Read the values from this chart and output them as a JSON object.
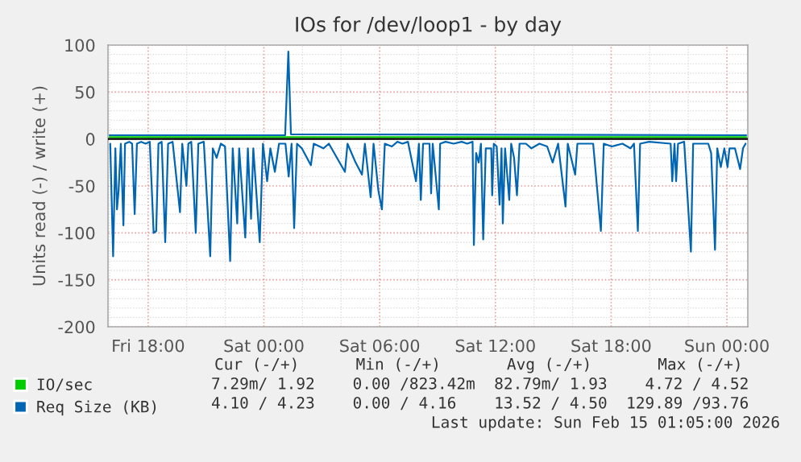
{
  "chart_data": {
    "type": "line",
    "title": "IOs for /dev/loop1 - by day",
    "ylabel": "Units read (-) / write (+)",
    "xlim": [
      "2026-02-13T15:55",
      "2026-02-15T01:05"
    ],
    "ylim": [
      -200,
      100
    ],
    "xticks": [
      {
        "value": "2026-02-13T18:00",
        "label": "Fri 18:00"
      },
      {
        "value": "2026-02-14T00:00",
        "label": "Sat 00:00"
      },
      {
        "value": "2026-02-14T06:00",
        "label": "Sat 06:00"
      },
      {
        "value": "2026-02-14T12:00",
        "label": "Sat 12:00"
      },
      {
        "value": "2026-02-14T18:00",
        "label": "Sat 18:00"
      },
      {
        "value": "2026-02-15T00:00",
        "label": "Sun 00:00"
      }
    ],
    "yticks": [
      -200,
      -150,
      -100,
      -50,
      0,
      50,
      100
    ],
    "grid": true,
    "legend": "bottom left",
    "ref_lines": [
      {
        "axis": "y",
        "value": 0,
        "color": "#000000"
      }
    ],
    "series": [
      {
        "name": "IO/sec",
        "color": "#00cc00",
        "x": [
          "2026-02-13T16:00",
          "2026-02-14T01:06",
          "2026-02-14T01:16",
          "2026-02-14T01:24",
          "2026-02-15T01:00"
        ],
        "values": [
          2,
          2,
          2,
          2,
          2
        ]
      },
      {
        "name": "Req Size (KB)",
        "color": "#0066b3",
        "x": [
          "2026-02-13T16:02",
          "2026-02-13T16:11",
          "2026-02-13T16:18",
          "2026-02-13T16:23",
          "2026-02-13T16:28",
          "2026-02-13T16:35",
          "2026-02-13T16:43",
          "2026-02-13T16:48",
          "2026-02-13T17:01",
          "2026-02-13T17:10",
          "2026-02-13T17:18",
          "2026-02-13T17:25",
          "2026-02-13T17:38",
          "2026-02-13T17:52",
          "2026-02-13T18:05",
          "2026-02-13T18:17",
          "2026-02-13T18:25",
          "2026-02-13T18:32",
          "2026-02-13T18:42",
          "2026-02-13T18:53",
          "2026-02-13T19:02",
          "2026-02-13T19:16",
          "2026-02-13T19:39",
          "2026-02-13T19:46",
          "2026-02-13T19:59",
          "2026-02-13T20:05",
          "2026-02-13T20:14",
          "2026-02-13T20:28",
          "2026-02-13T20:36",
          "2026-02-13T20:53",
          "2026-02-13T21:13",
          "2026-02-13T21:21",
          "2026-02-13T21:33",
          "2026-02-13T21:46",
          "2026-02-13T21:59",
          "2026-02-13T22:15",
          "2026-02-13T22:23",
          "2026-02-13T22:37",
          "2026-02-13T22:43",
          "2026-02-13T23:02",
          "2026-02-13T23:10",
          "2026-02-13T23:20",
          "2026-02-13T23:27",
          "2026-02-13T23:47",
          "2026-02-13T23:57",
          "2026-02-14T00:10",
          "2026-02-14T00:20",
          "2026-02-14T00:34",
          "2026-02-14T00:47",
          "2026-02-14T01:07",
          "2026-02-14T01:17",
          "2026-02-14T01:26",
          "2026-02-14T01:34",
          "2026-02-14T01:43",
          "2026-02-14T01:58",
          "2026-02-14T02:26",
          "2026-02-14T02:35",
          "2026-02-14T03:05",
          "2026-02-14T03:22",
          "2026-02-14T04:12",
          "2026-02-14T04:20",
          "2026-02-14T04:45",
          "2026-02-14T05:05",
          "2026-02-14T05:14",
          "2026-02-14T05:32",
          "2026-02-14T05:41",
          "2026-02-14T05:56",
          "2026-02-14T06:07",
          "2026-02-14T06:16",
          "2026-02-14T06:38",
          "2026-02-14T06:55",
          "2026-02-14T07:11",
          "2026-02-14T07:28",
          "2026-02-14T07:53",
          "2026-02-14T08:02",
          "2026-02-14T08:08",
          "2026-02-14T08:15",
          "2026-02-14T08:35",
          "2026-02-14T08:40",
          "2026-02-14T08:45",
          "2026-02-14T09:04",
          "2026-02-14T09:08",
          "2026-02-14T09:25",
          "2026-02-14T09:50",
          "2026-02-14T10:15",
          "2026-02-14T10:32",
          "2026-02-14T10:49",
          "2026-02-14T10:53",
          "2026-02-14T11:00",
          "2026-02-14T11:08",
          "2026-02-14T11:15",
          "2026-02-14T11:22",
          "2026-02-14T11:30",
          "2026-02-14T11:47",
          "2026-02-14T11:50",
          "2026-02-14T11:55",
          "2026-02-14T12:04",
          "2026-02-14T12:13",
          "2026-02-14T12:19",
          "2026-02-14T12:23",
          "2026-02-14T12:30",
          "2026-02-14T12:43",
          "2026-02-14T12:49",
          "2026-02-14T12:58",
          "2026-02-14T13:07",
          "2026-02-14T13:15",
          "2026-02-14T13:35",
          "2026-02-14T13:52",
          "2026-02-14T14:17",
          "2026-02-14T14:41",
          "2026-02-14T14:58",
          "2026-02-14T15:15",
          "2026-02-14T15:38",
          "2026-02-14T15:45",
          "2026-02-14T16:08",
          "2026-02-14T16:15",
          "2026-02-14T16:38",
          "2026-02-14T17:04",
          "2026-02-14T17:28",
          "2026-02-14T17:37",
          "2026-02-14T18:02",
          "2026-02-14T18:35",
          "2026-02-14T19:00",
          "2026-02-14T19:11",
          "2026-02-14T19:23",
          "2026-02-14T19:30",
          "2026-02-14T19:58",
          "2026-02-14T21:05",
          "2026-02-14T21:10",
          "2026-02-14T21:17",
          "2026-02-14T21:22",
          "2026-02-14T21:28",
          "2026-02-14T21:47",
          "2026-02-14T22:08",
          "2026-02-14T22:15",
          "2026-02-14T22:45",
          "2026-02-14T23:02",
          "2026-02-14T23:11",
          "2026-02-14T23:23",
          "2026-02-14T23:30",
          "2026-02-14T23:41",
          "2026-02-14T23:52",
          "2026-02-15T00:02",
          "2026-02-15T00:08",
          "2026-02-15T00:25",
          "2026-02-15T00:41",
          "2026-02-15T00:50",
          "2026-02-15T00:58"
        ],
        "values": [
          -5,
          -125,
          -10,
          -75,
          -55,
          -5,
          -92,
          -5,
          -3,
          -5,
          -80,
          -5,
          -3,
          -5,
          -3,
          -100,
          -98,
          -5,
          -3,
          -110,
          -5,
          -3,
          -78,
          -5,
          -50,
          -5,
          -3,
          -100,
          -5,
          -3,
          -125,
          -10,
          -20,
          -5,
          -8,
          -130,
          -10,
          -90,
          -10,
          -105,
          -10,
          -85,
          -10,
          -110,
          -5,
          -45,
          -10,
          -35,
          -5,
          -5,
          -40,
          -5,
          -95,
          -5,
          -10,
          -28,
          -5,
          -10,
          -5,
          -35,
          -5,
          -25,
          -38,
          -5,
          -62,
          -5,
          -55,
          -75,
          -5,
          -8,
          -3,
          -5,
          -3,
          -45,
          -5,
          -65,
          -5,
          -5,
          -58,
          -5,
          -75,
          -5,
          -3,
          -5,
          -3,
          -5,
          -3,
          -113,
          -15,
          -25,
          -5,
          -107,
          -10,
          -10,
          -60,
          -5,
          -8,
          -70,
          -10,
          -90,
          -10,
          -65,
          -5,
          -20,
          -60,
          -5,
          -5,
          -10,
          -5,
          -8,
          -25,
          -5,
          -72,
          -5,
          -38,
          -5,
          -5,
          -5,
          -98,
          -5,
          -8,
          -5,
          -10,
          -5,
          -98,
          -5,
          -3,
          -5,
          -45,
          -5,
          -45,
          -5,
          -3,
          -120,
          -5,
          -5,
          -5,
          -15,
          -118,
          -10,
          -30,
          -10,
          -30,
          -10,
          -10,
          -32,
          -10,
          -5
        ]
      },
      {
        "color": "#0066b3",
        "x": [
          "2026-02-13T16:00",
          "2026-02-14T01:06",
          "2026-02-14T01:16",
          "2026-02-14T01:24",
          "2026-02-15T01:00"
        ],
        "values": [
          4,
          4,
          93,
          5,
          4
        ]
      }
    ],
    "annotations": [
      "Cur (-/+)      Min (-/+)       Avg (-/+)       Max (-/+)",
      "7.29m/ 1.92    0.00 /823.42m  82.79m/ 1.93    4.72 / 4.52",
      "4.10 / 4.23    0.00 / 4.16    13.52 / 4.50  129.89 /93.76",
      "Last update: Sun Feb 15 01:05:00 2026"
    ]
  }
}
